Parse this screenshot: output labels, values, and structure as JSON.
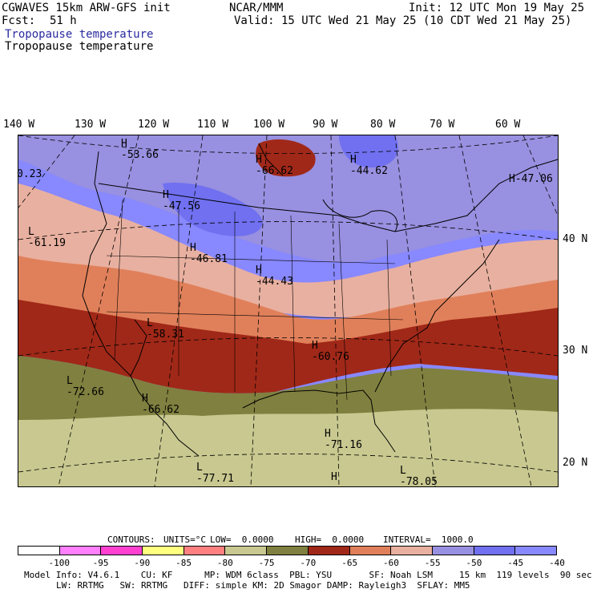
{
  "header": {
    "model_line": "CGWAVES 15km ARW-GFS init",
    "org": "NCAR/MMM",
    "init": "Init: 12 UTC Mon 19 May 25",
    "fcst_label": "Fcst:",
    "fcst_value": "51 h",
    "valid": "Valid: 15 UTC Wed 21 May 25 (10 CDT Wed 21 May 25)",
    "field_title_1": "Tropopause temperature",
    "field_title_2": "Tropopause temperature"
  },
  "map": {
    "lon_labels": [
      "140 W",
      "130 W",
      "120 W",
      "110 W",
      "100 W",
      "90 W",
      "80 W",
      "70 W",
      "60 W"
    ],
    "lat_labels": [
      "40 N",
      "30 N",
      "20 N"
    ],
    "pressure_centers": [
      {
        "sym": "H",
        "value": "-53.66"
      },
      {
        "sym": "",
        "value": "0.23"
      },
      {
        "sym": "H",
        "value": "-66.62"
      },
      {
        "sym": "H",
        "value": "-44.62"
      },
      {
        "sym": "H",
        "value": "-47.06"
      },
      {
        "sym": "H",
        "value": "-47.56"
      },
      {
        "sym": "L",
        "value": "-61.19"
      },
      {
        "sym": "H",
        "value": "-46.81"
      },
      {
        "sym": "H",
        "value": "-44.43"
      },
      {
        "sym": "L",
        "value": "-58.31"
      },
      {
        "sym": "H",
        "value": "-60.76"
      },
      {
        "sym": "L",
        "value": "-72.66"
      },
      {
        "sym": "H",
        "value": "-66.62"
      },
      {
        "sym": "H",
        "value": "-71.16"
      },
      {
        "sym": "L",
        "value": "-77.71"
      },
      {
        "sym": "H",
        "value": ""
      },
      {
        "sym": "L",
        "value": "-78.05"
      }
    ]
  },
  "contours_line": {
    "contours": "CONTOURS:",
    "units": "UNITS=°C",
    "low": "LOW=  0.0000",
    "high": "HIGH=  0.0000",
    "interval": "INTERVAL=  1000.0"
  },
  "colorbar": {
    "colors": [
      "#ffffff",
      "#ff80ff",
      "#ff40d0",
      "#ffff80",
      "#ff8080",
      "#c8c890",
      "#808040",
      "#a02818",
      "#e0805a",
      "#e8b0a0",
      "#9890e0",
      "#7070f0",
      "#8888ff"
    ],
    "ticks": [
      "-100",
      "-95",
      "-90",
      "-85",
      "-80",
      "-75",
      "-70",
      "-65",
      "-60",
      "-55",
      "-50",
      "-45",
      "-40",
      "°C"
    ]
  },
  "footer": {
    "line1": "Model Info: V4.6.1    CU: KF      MP: WDM 6class  PBL: YSU       SF: Noah LSM     15 km  119 levels  90 sec",
    "line2": "LW: RRTMG   SW: RRTMG   DIFF: simple KM: 2D Smagor DAMP: Rayleigh3  SFLAY: MM5"
  }
}
